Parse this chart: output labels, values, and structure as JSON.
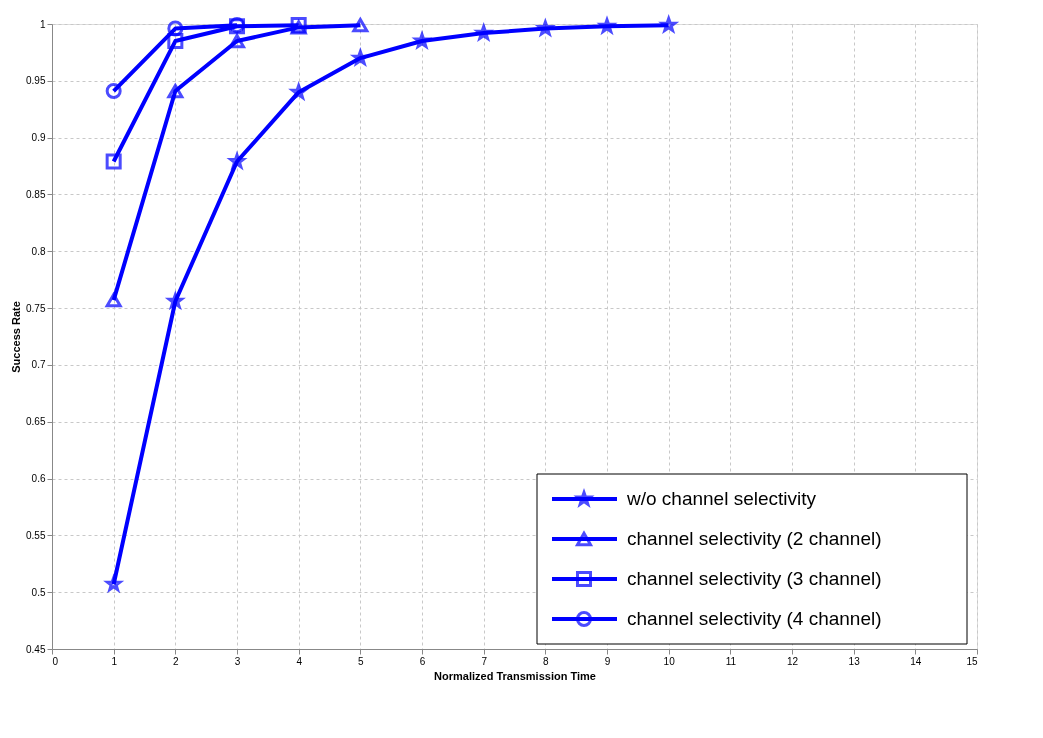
{
  "chart_data": {
    "type": "line",
    "xlabel": "Normalized Transmission Time",
    "ylabel": "Success Rate",
    "xlim": [
      0,
      15
    ],
    "xticks": [
      0,
      1,
      2,
      3,
      4,
      5,
      6,
      7,
      8,
      9,
      10,
      11,
      12,
      13,
      14,
      15
    ],
    "ylim": [
      0.45,
      1
    ],
    "yticks": [
      0.45,
      0.5,
      0.55,
      0.6,
      0.65,
      0.7,
      0.75,
      0.8,
      0.85,
      0.9,
      0.95,
      1
    ],
    "grid": true,
    "legend": "bottom right",
    "line_style": "solid",
    "series": [
      {
        "name": "w/o channel selectivity",
        "color": "#0000ff",
        "marker": "star",
        "x": [
          1,
          2,
          3,
          4,
          5,
          6,
          7,
          8,
          9,
          10
        ],
        "values": [
          0.507,
          0.756,
          0.879,
          0.94,
          0.97,
          0.985,
          0.992,
          0.996,
          0.998,
          0.999
        ]
      },
      {
        "name": "channel selectivity (2 channel)",
        "color": "#0000ff",
        "marker": "triangle",
        "x": [
          1,
          2,
          3,
          4,
          5
        ],
        "values": [
          0.757,
          0.941,
          0.985,
          0.997,
          0.999
        ]
      },
      {
        "name": "channel selectivity (3 channel)",
        "color": "#0000ff",
        "marker": "square",
        "x": [
          1,
          2,
          3,
          4
        ],
        "values": [
          0.879,
          0.985,
          0.998,
          0.999
        ]
      },
      {
        "name": "channel selectivity (4 channel)",
        "color": "#0000ff",
        "marker": "circle",
        "x": [
          1,
          2,
          3
        ],
        "values": [
          0.941,
          0.996,
          0.999
        ]
      }
    ]
  }
}
